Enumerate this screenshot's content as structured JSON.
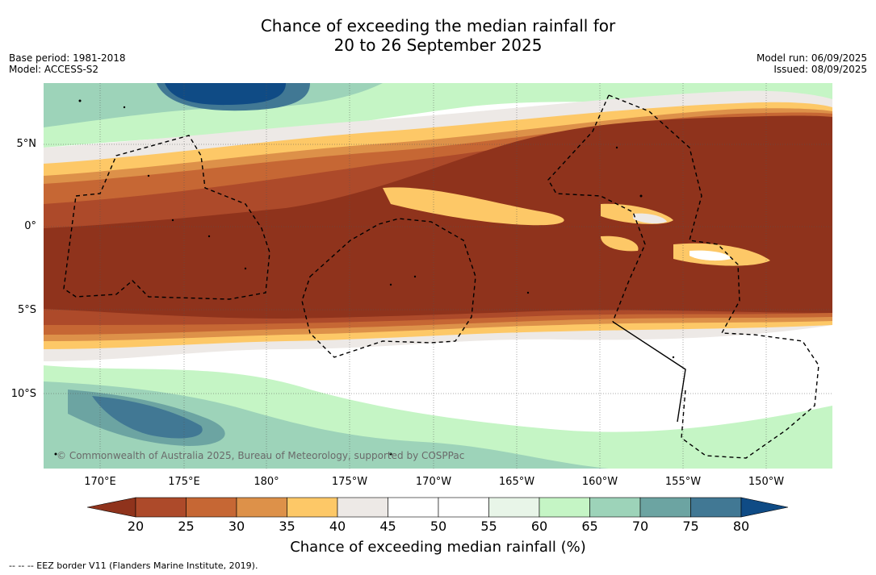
{
  "title": {
    "line1": "Chance of exceeding the median rainfall for",
    "line2": "20 to 26 September 2025"
  },
  "meta_left": {
    "base_period": "Base period: 1981-2018",
    "model": "Model: ACCESS-S2"
  },
  "meta_right": {
    "model_run": "Model run: 06/09/2025",
    "issued": "Issued: 08/09/2025"
  },
  "lat_labels": [
    "5°N",
    "0°",
    "5°S",
    "10°S"
  ],
  "lon_labels": [
    "170°E",
    "175°E",
    "180°",
    "175°W",
    "170°W",
    "165°W",
    "160°W",
    "155°W",
    "150°W"
  ],
  "colorbar": {
    "ticks": [
      "20",
      "25",
      "30",
      "35",
      "40",
      "45",
      "50",
      "55",
      "60",
      "65",
      "70",
      "75",
      "80"
    ],
    "colors": [
      "#8f331c",
      "#ad4a2a",
      "#c66734",
      "#dd9149",
      "#fdc867",
      "#ede9e6",
      "#ffffff",
      "#ffffff",
      "#e8f5e8",
      "#c5f5c5",
      "#9dd3b9",
      "#6ca4a2",
      "#417894",
      "#0f4b85"
    ],
    "label": "Chance of exceeding median rainfall (%)"
  },
  "copyright": "© Commonwealth of Australia 2025, Bureau of Meteorology, supported by COSPPac",
  "footnote": "--  --  -- EEZ border V11 (Flanders Marine Institute, 2019)."
}
